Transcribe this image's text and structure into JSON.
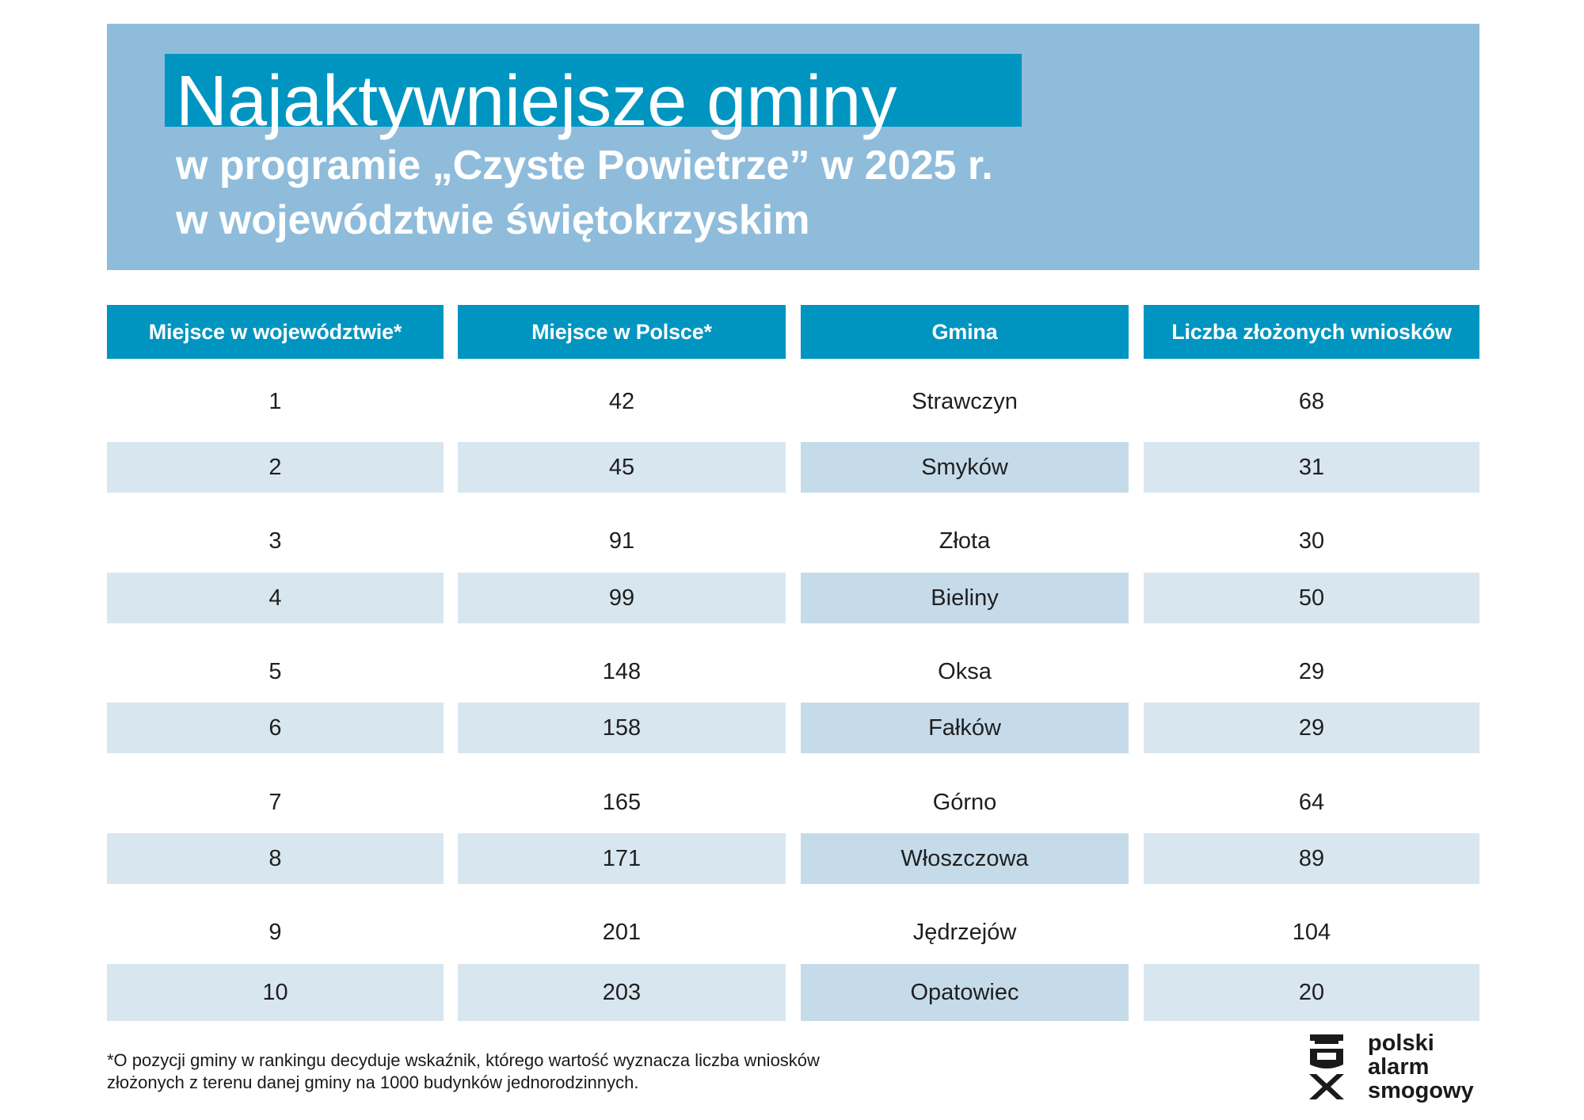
{
  "header": {
    "title": "Najaktywniejsze gminy",
    "subtitle_line1": "w programie „Czyste Powietrze” w 2025 r.",
    "subtitle_line2": "w województwie świętokrzyskim"
  },
  "table": {
    "columns": [
      "Miejsce w województwie*",
      "Miejsce w Polsce*",
      "Gmina",
      "Liczba złożonych wniosków"
    ],
    "rows": [
      [
        "1",
        "42",
        "Strawczyn",
        "68"
      ],
      [
        "2",
        "45",
        "Smyków",
        "31"
      ],
      [
        "3",
        "91",
        "Złota",
        "30"
      ],
      [
        "4",
        "99",
        "Bieliny",
        "50"
      ],
      [
        "5",
        "148",
        "Oksa",
        "29"
      ],
      [
        "6",
        "158",
        "Fałków",
        "29"
      ],
      [
        "7",
        "165",
        "Górno",
        "64"
      ],
      [
        "8",
        "171",
        "Włoszczowa",
        "89"
      ],
      [
        "9",
        "201",
        "Jędrzejów",
        "104"
      ],
      [
        "10",
        "203",
        "Opatowiec",
        "20"
      ]
    ]
  },
  "footnote": {
    "line1": "*O pozycji gminy w rankingu decyduje wskaźnik, którego wartość wyznacza liczba wniosków",
    "line2": "złożonych z terenu danej gminy na 1000 budynków jednorodzinnych."
  },
  "logo": {
    "line1": "polski",
    "line2": "alarm",
    "line3": "smogowy",
    "icon": "polski-alarm-smogowy-logo-icon"
  },
  "colors": {
    "banner": "#8fbcdb",
    "accent": "#0095c1",
    "row_shade": "#d8e6f0",
    "row_shade_gmina": "#c6dbea"
  }
}
